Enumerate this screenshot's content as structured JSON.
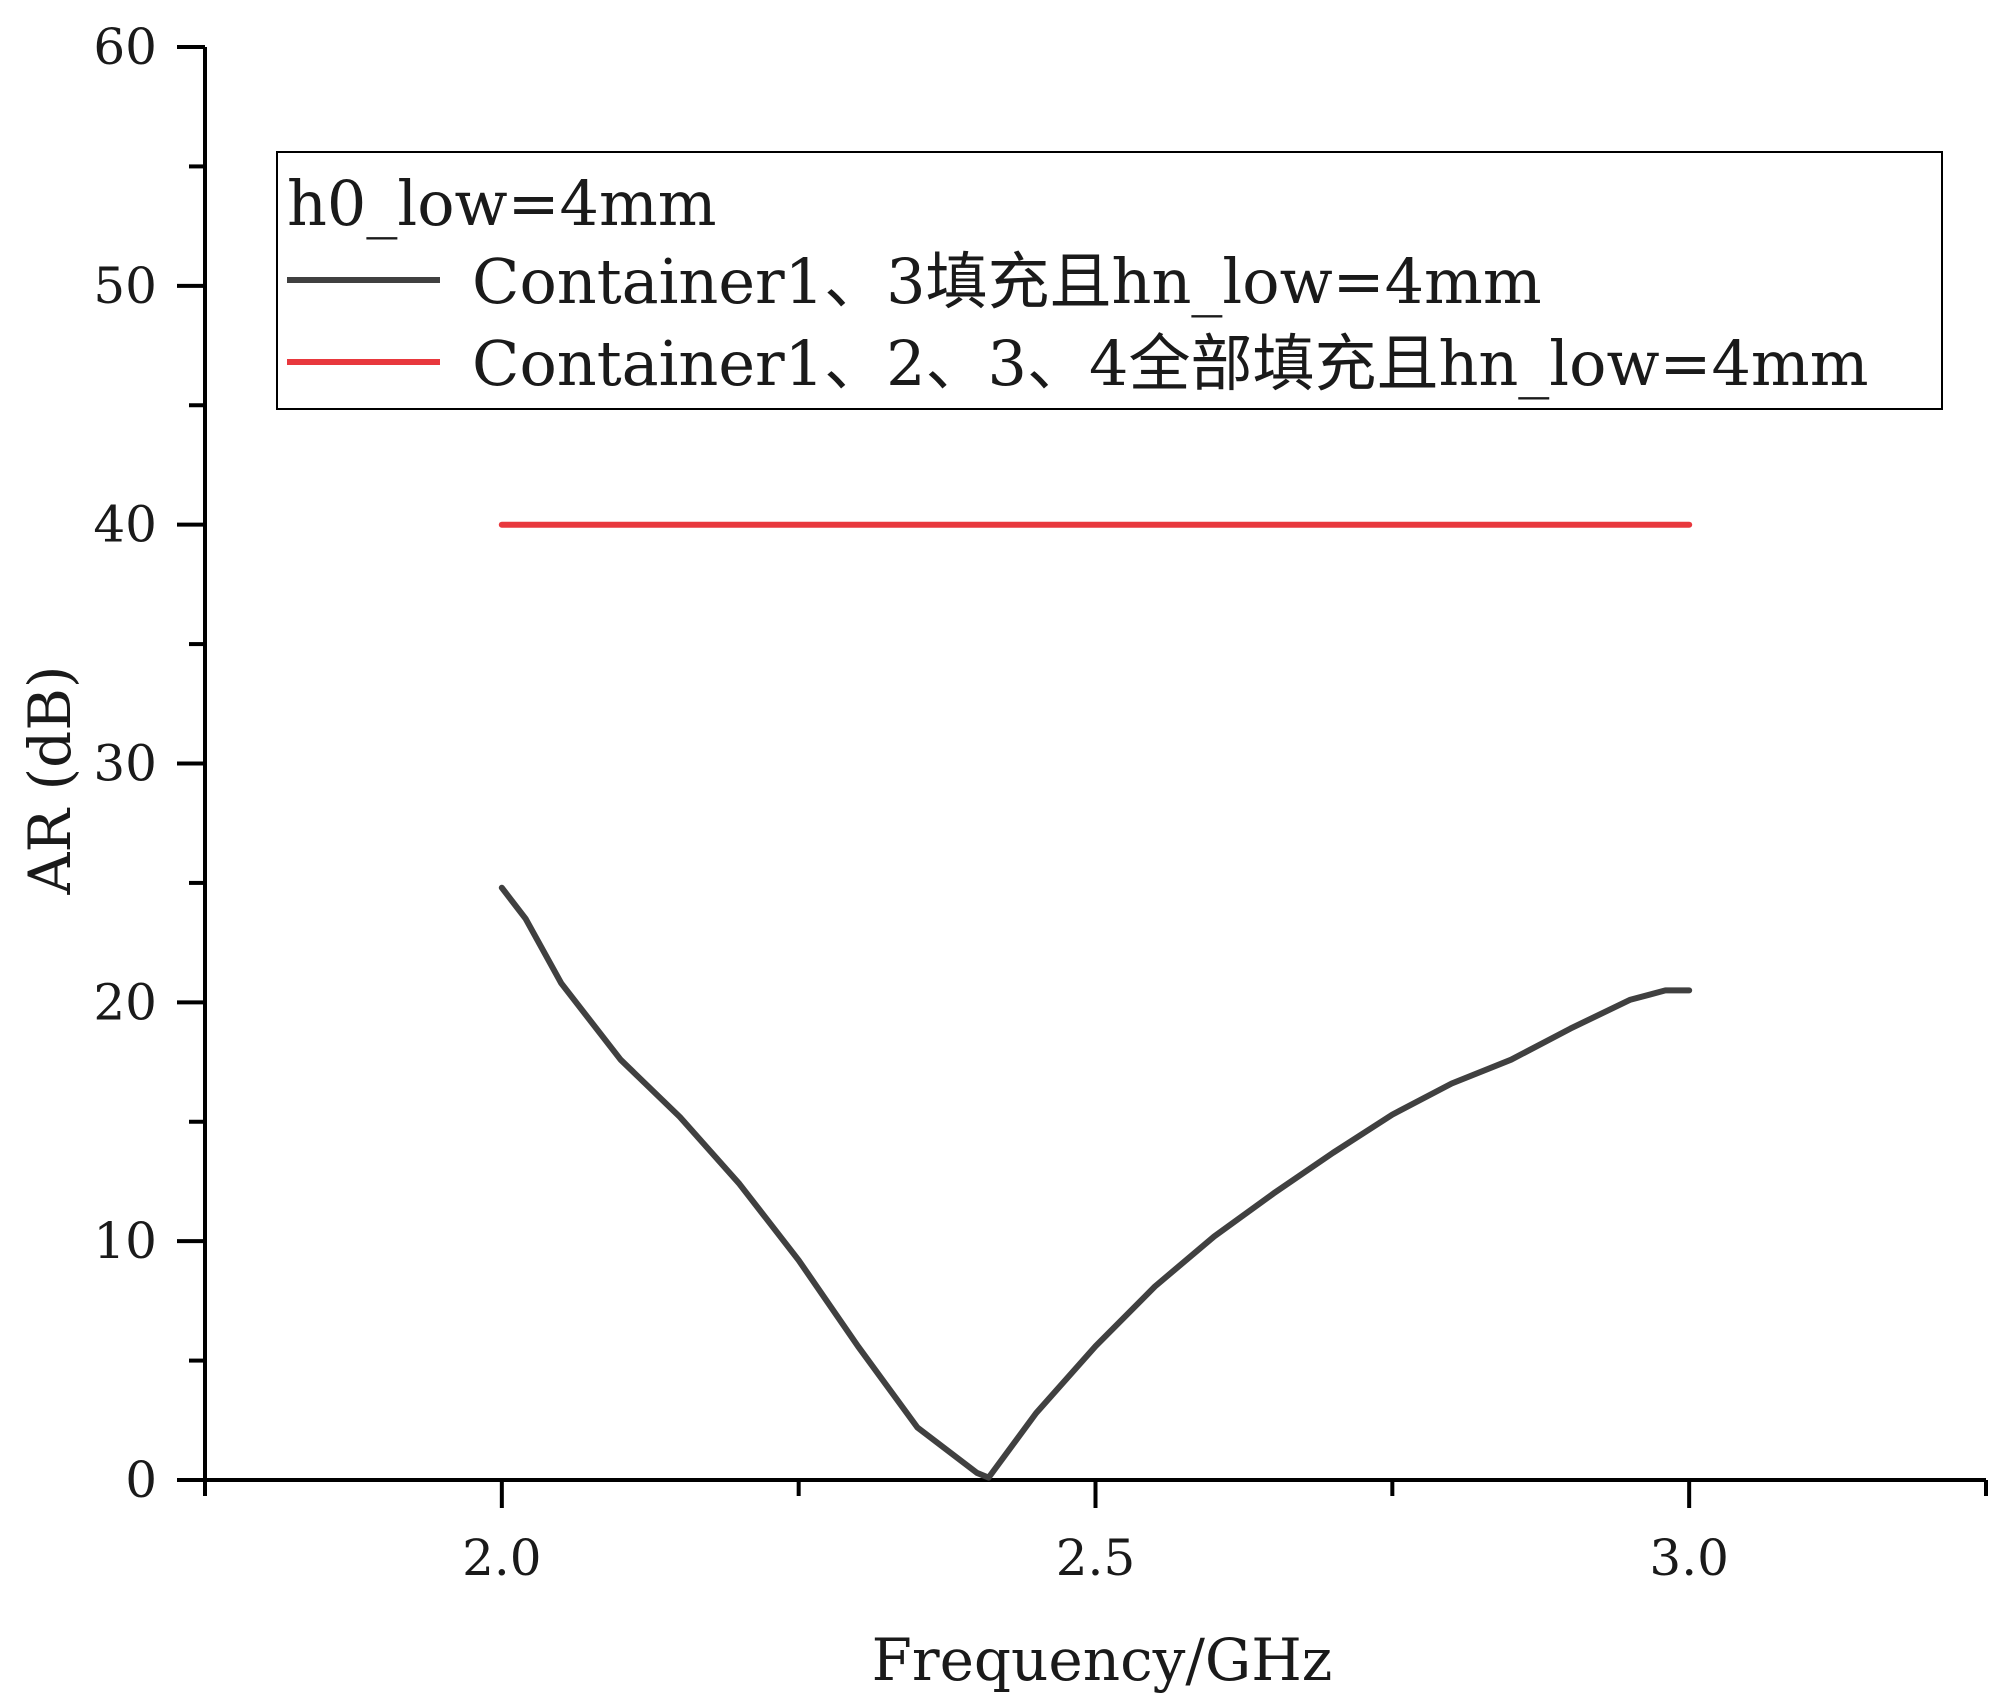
{
  "chart_data": {
    "type": "line",
    "xlabel": "Frequency/GHz",
    "ylabel": "AR (dB)",
    "xlim": [
      1.75,
      3.25
    ],
    "ylim": [
      0,
      60
    ],
    "x_ticks": [
      "2.0",
      "2.5",
      "3.0"
    ],
    "y_ticks": [
      "0",
      "10",
      "20",
      "30",
      "40",
      "50",
      "60"
    ],
    "grid": false,
    "legend": {
      "position": "top-right",
      "title": "h0_low=4mm"
    },
    "series": [
      {
        "name": "Container1、3填充且hn_low=4mm",
        "color": "#404040",
        "x": [
          2.0,
          2.02,
          2.05,
          2.1,
          2.15,
          2.2,
          2.25,
          2.3,
          2.35,
          2.4,
          2.41,
          2.45,
          2.5,
          2.55,
          2.6,
          2.65,
          2.7,
          2.75,
          2.8,
          2.85,
          2.9,
          2.95,
          2.98,
          3.0
        ],
        "y": [
          24.8,
          23.5,
          20.8,
          17.6,
          15.2,
          12.4,
          9.2,
          5.6,
          2.2,
          0.3,
          0.1,
          2.8,
          5.6,
          8.1,
          10.2,
          12.0,
          13.7,
          15.3,
          16.6,
          17.6,
          18.9,
          20.1,
          20.5,
          20.5
        ]
      },
      {
        "name": "Container1、2、3、4全部填充且hn_low=4mm",
        "color": "#e8383d",
        "x": [
          2.0,
          3.0
        ],
        "y": [
          40,
          40
        ]
      }
    ]
  }
}
